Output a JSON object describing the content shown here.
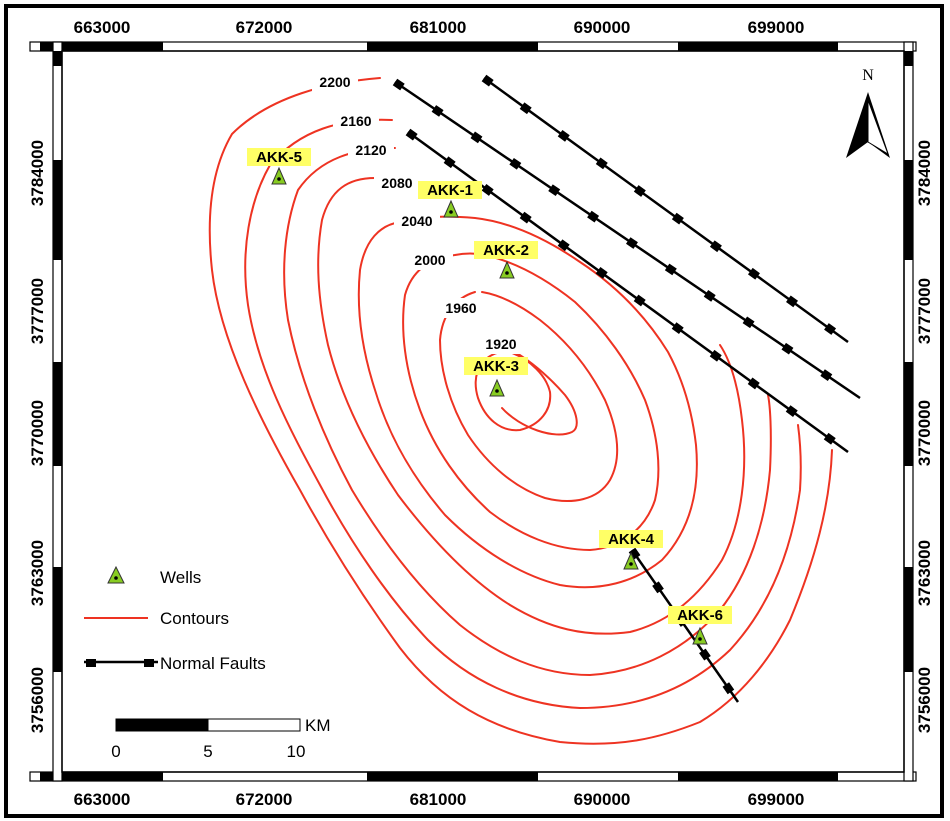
{
  "map": {
    "x_ticks": [
      "663000",
      "672000",
      "681000",
      "690000",
      "699000"
    ],
    "y_ticks": [
      "3784000",
      "3777000",
      "3770000",
      "3763000",
      "3756000"
    ],
    "north_label": "N"
  },
  "contours": [
    "2200",
    "2160",
    "2120",
    "2080",
    "2040",
    "2000",
    "1960",
    "1920"
  ],
  "wells": [
    "AKK-1",
    "AKK-2",
    "AKK-3",
    "AKK-4",
    "AKK-5",
    "AKK-6"
  ],
  "legend": {
    "wells": "Wells",
    "contours": "Contours",
    "faults": "Normal Faults"
  },
  "scale_bar": {
    "unit": "KM",
    "labels": [
      "0",
      "5",
      "10"
    ]
  },
  "colors": {
    "contour": "#ee3322",
    "well_fill": "#88cc22",
    "label_highlight": "#ffff66",
    "frame": "#000000"
  }
}
